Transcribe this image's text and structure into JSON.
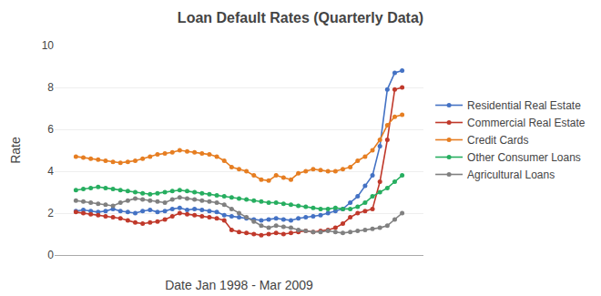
{
  "chart_data": {
    "type": "line",
    "title": "Loan Default Rates (Quarterly Data)",
    "xlabel": "Date Jan 1998 - Mar 2009",
    "ylabel": "Rate",
    "categories": [
      null,
      null,
      null,
      null,
      null,
      null,
      null,
      null,
      null,
      null,
      null,
      null,
      null,
      null,
      null,
      null,
      null,
      null,
      null,
      null,
      null,
      null,
      null,
      null,
      null,
      null,
      null,
      null,
      null,
      null,
      null,
      null,
      null,
      null,
      null,
      null,
      null,
      null,
      null,
      null,
      null,
      null,
      null,
      null,
      null
    ],
    "series": [
      {
        "name": "Residential Real Estate",
        "color": "#4472C4",
        "values": [
          2.1,
          2.15,
          2.1,
          2.05,
          2.1,
          2.2,
          2.1,
          2.05,
          2.0,
          2.1,
          2.15,
          2.05,
          2.1,
          2.2,
          2.25,
          2.15,
          2.2,
          2.15,
          2.1,
          2.05,
          1.9,
          1.85,
          1.8,
          1.75,
          1.7,
          1.65,
          1.7,
          1.75,
          1.7,
          1.65,
          1.75,
          1.8,
          1.85,
          1.9,
          2.0,
          2.1,
          2.2,
          2.5,
          2.8,
          3.3,
          3.8,
          5.2,
          7.9,
          8.7,
          8.8
        ]
      },
      {
        "name": "Commercial Real Estate",
        "color": "#C0392B",
        "values": [
          2.05,
          2.0,
          1.95,
          1.9,
          1.85,
          1.8,
          1.75,
          1.65,
          1.55,
          1.5,
          1.55,
          1.6,
          1.7,
          1.85,
          2.0,
          1.95,
          1.9,
          1.85,
          1.8,
          1.75,
          1.65,
          1.2,
          1.1,
          1.05,
          1.0,
          0.95,
          1.0,
          1.05,
          1.0,
          1.05,
          1.1,
          1.15,
          1.1,
          1.15,
          1.2,
          1.3,
          1.5,
          1.8,
          2.0,
          2.1,
          2.2,
          3.5,
          5.5,
          7.9,
          8.0
        ]
      },
      {
        "name": "Credit Cards",
        "color": "#E67E22",
        "values": [
          4.7,
          4.65,
          4.6,
          4.55,
          4.5,
          4.45,
          4.4,
          4.45,
          4.5,
          4.6,
          4.7,
          4.8,
          4.85,
          4.9,
          5.0,
          4.95,
          4.9,
          4.85,
          4.8,
          4.7,
          4.5,
          4.2,
          4.1,
          4.0,
          3.8,
          3.6,
          3.55,
          3.8,
          3.7,
          3.6,
          3.9,
          4.0,
          4.1,
          4.05,
          4.0,
          4.0,
          4.1,
          4.2,
          4.5,
          4.7,
          5.0,
          5.5,
          6.2,
          6.6,
          6.7
        ]
      },
      {
        "name": "Other Consumer Loans",
        "color": "#27AE60",
        "values": [
          3.1,
          3.15,
          3.2,
          3.25,
          3.2,
          3.15,
          3.1,
          3.05,
          3.0,
          2.95,
          2.9,
          2.95,
          3.0,
          3.05,
          3.1,
          3.05,
          3.0,
          2.95,
          2.9,
          2.85,
          2.8,
          2.75,
          2.7,
          2.65,
          2.6,
          2.55,
          2.5,
          2.5,
          2.45,
          2.4,
          2.35,
          2.3,
          2.25,
          2.2,
          2.2,
          2.25,
          2.2,
          2.2,
          2.3,
          2.5,
          2.8,
          3.0,
          3.2,
          3.5,
          3.8
        ]
      },
      {
        "name": "Agricultural Loans",
        "color": "#808080",
        "values": [
          2.6,
          2.55,
          2.5,
          2.45,
          2.4,
          2.35,
          2.5,
          2.6,
          2.7,
          2.65,
          2.6,
          2.55,
          2.5,
          2.65,
          2.75,
          2.7,
          2.65,
          2.6,
          2.55,
          2.5,
          2.4,
          2.2,
          2.0,
          1.8,
          1.6,
          1.4,
          1.3,
          1.4,
          1.35,
          1.3,
          1.2,
          1.15,
          1.1,
          1.1,
          1.15,
          1.1,
          1.05,
          1.1,
          1.15,
          1.2,
          1.25,
          1.3,
          1.4,
          1.7,
          2.0
        ]
      }
    ],
    "ylim": [
      0,
      10
    ],
    "yticks": [
      0,
      2,
      4,
      6,
      8,
      10
    ],
    "grid": true,
    "legend": "right",
    "marker": "circle",
    "tick_labels": "y"
  }
}
